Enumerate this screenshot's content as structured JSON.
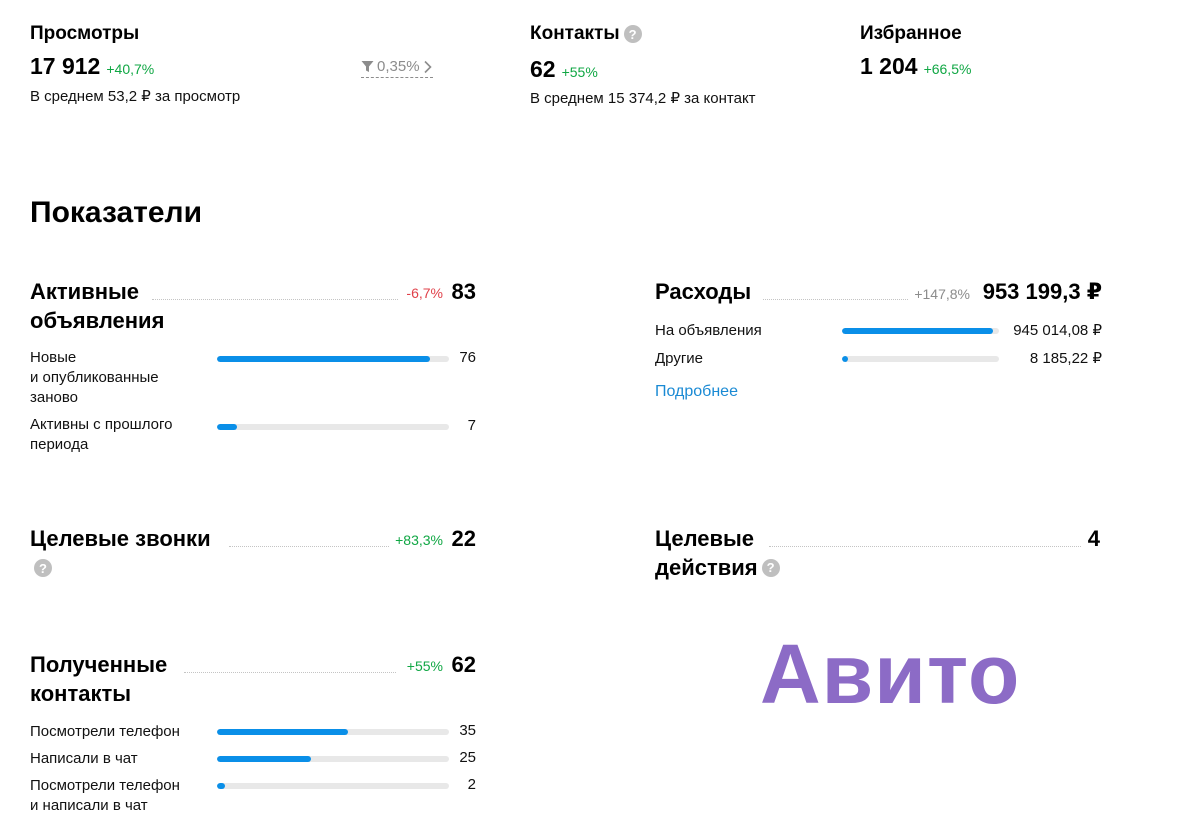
{
  "kpis": {
    "views": {
      "title": "Просмотры",
      "value": "17 912",
      "delta": "+40,7%",
      "average": "В среднем 53,2 ₽ за просмотр",
      "conversion": "0,35%"
    },
    "contacts": {
      "title": "Контакты",
      "value": "62",
      "delta": "+55%",
      "average": "В среднем 15 374,2 ₽ за контакт"
    },
    "favorites": {
      "title": "Избранное",
      "value": "1 204",
      "delta": "+66,5%"
    }
  },
  "section_title": "Показатели",
  "active_listings": {
    "title_line1": "Активные",
    "title_line2": "объявления",
    "delta": "-6,7%",
    "total": "83",
    "rows": [
      {
        "label_line1": "Новые",
        "label_line2": "и опубликованные",
        "label_line3": "заново",
        "value": "76",
        "fraction": 0.92
      },
      {
        "label_line1": "Активны с прошлого",
        "label_line2": "периода",
        "value": "7",
        "fraction": 0.085
      }
    ]
  },
  "expenses": {
    "title": "Расходы",
    "delta": "+147,8%",
    "total": "953 199,3 ₽",
    "rows": [
      {
        "label": "На объявления",
        "value": "945 014,08 ₽",
        "fraction": 0.96
      },
      {
        "label": "Другие",
        "value": "8 185,22 ₽",
        "fraction": 0.04
      }
    ],
    "more_link": "Подробнее"
  },
  "target_calls": {
    "title": "Целевые звонки",
    "delta": "+83,3%",
    "total": "22"
  },
  "target_actions": {
    "title_line1": "Целевые",
    "title_line2": "действия",
    "total": "4"
  },
  "received_contacts": {
    "title_line1": "Полученные",
    "title_line2": "контакты",
    "delta": "+55%",
    "total": "62",
    "rows": [
      {
        "label_line1": "Посмотрели телефон",
        "value": "35",
        "fraction": 0.565
      },
      {
        "label_line1": "Написали в чат",
        "value": "25",
        "fraction": 0.405
      },
      {
        "label_line1": "Посмотрели телефон",
        "label_line2": "и написали в чат",
        "value": "2",
        "fraction": 0.035
      }
    ]
  },
  "brand": "Авито",
  "colors": {
    "bar_fill": "#0a8fe8",
    "bar_track": "#e8e8e8",
    "positive": "#10a744",
    "negative": "#e0414a",
    "brand": "#8c6bc6"
  },
  "icons": [
    "help-icon",
    "filter-icon",
    "chevron-right-icon"
  ]
}
